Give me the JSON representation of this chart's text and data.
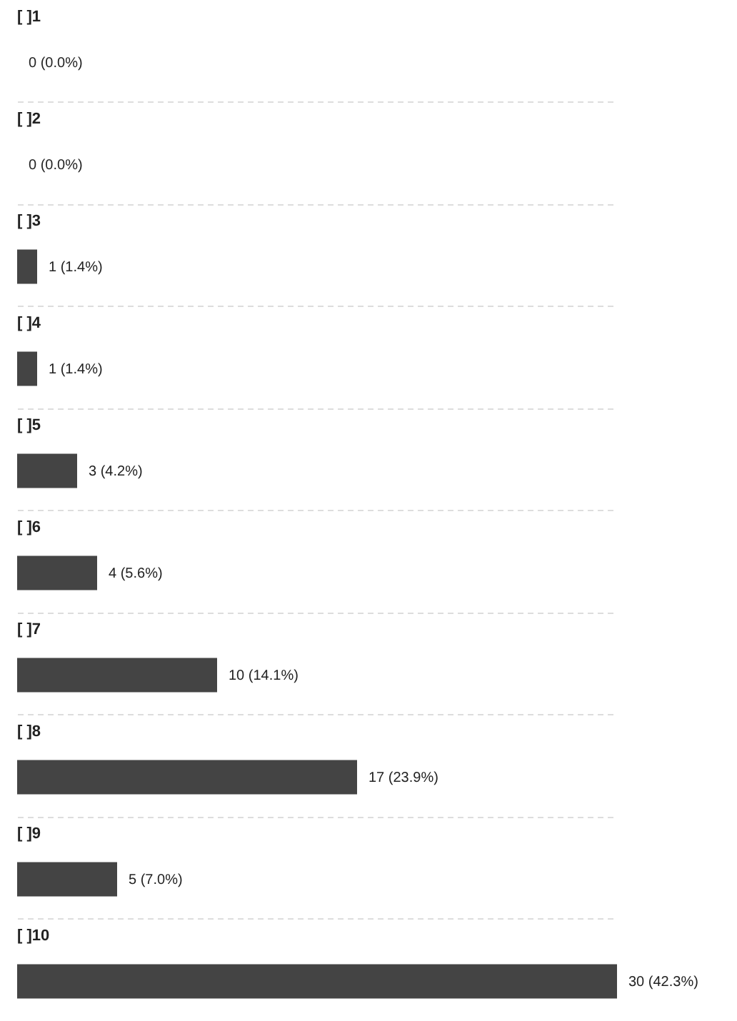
{
  "chart_data": {
    "type": "bar",
    "orientation": "horizontal",
    "categories": [
      "[ ]1",
      "[ ]2",
      "[ ]3",
      "[ ]4",
      "[ ]5",
      "[ ]6",
      "[ ]7",
      "[ ]8",
      "[ ]9",
      "[ ]10"
    ],
    "values": [
      0,
      0,
      1,
      1,
      3,
      4,
      10,
      17,
      5,
      30
    ],
    "value_labels": [
      "0 (0.0%)",
      "0 (0.0%)",
      "1 (1.4%)",
      "1 (1.4%)",
      "3 (4.2%)",
      "4 (5.6%)",
      "10 (14.1%)",
      "17 (23.9%)",
      "5 (7.0%)",
      "30 (42.3%)"
    ],
    "color": "#444444",
    "grid": "y"
  }
}
